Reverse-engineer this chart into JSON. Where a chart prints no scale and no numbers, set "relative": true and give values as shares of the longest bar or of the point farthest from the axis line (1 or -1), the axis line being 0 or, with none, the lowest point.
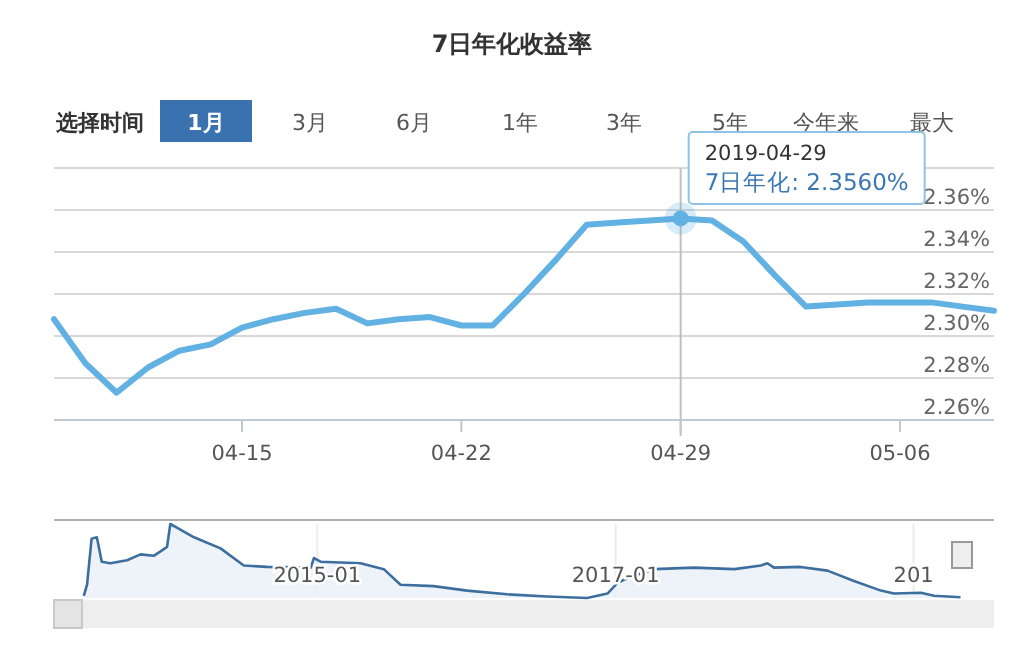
{
  "chart_data": [
    {
      "type": "line",
      "title": "7日年化收益率",
      "annotations": [
        "选择时间",
        "1月",
        "3月",
        "6月",
        "1年",
        "3年",
        "5年",
        "今年来",
        "最大",
        {
          "text": "2019-04-29\n7日年化: 2.3560%",
          "x": "2019-04-29",
          "y": 2.356
        }
      ],
      "x": [
        "2019-04-09",
        "2019-04-10",
        "2019-04-11",
        "2019-04-12",
        "2019-04-13",
        "2019-04-14",
        "2019-04-15",
        "2019-04-16",
        "2019-04-17",
        "2019-04-18",
        "2019-04-19",
        "2019-04-20",
        "2019-04-21",
        "2019-04-22",
        "2019-04-23",
        "2019-04-24",
        "2019-04-25",
        "2019-04-26",
        "2019-04-27",
        "2019-04-28",
        "2019-04-29",
        "2019-04-30",
        "2019-05-01",
        "2019-05-02",
        "2019-05-03",
        "2019-05-04",
        "2019-05-05",
        "2019-05-06",
        "2019-05-07",
        "2019-05-08",
        "2019-05-09"
      ],
      "series": [
        {
          "color": "#62b1e3",
          "values": [
            2.308,
            2.287,
            2.273,
            2.285,
            2.293,
            2.296,
            2.304,
            2.308,
            2.311,
            2.313,
            2.306,
            2.308,
            2.309,
            2.305,
            2.305,
            2.32,
            2.336,
            2.353,
            2.354,
            2.355,
            2.356,
            2.355,
            2.345,
            2.329,
            2.314,
            2.315,
            2.316,
            2.316,
            2.316,
            2.314,
            2.312
          ]
        }
      ],
      "xlim": [
        "2019-04-09",
        "2019-05-09"
      ],
      "xticks": [
        {
          "value": "2019-04-15",
          "label": "04-15"
        },
        {
          "value": "2019-04-22",
          "label": "04-22"
        },
        {
          "value": "2019-04-29",
          "label": "04-29"
        },
        {
          "value": "2019-05-06",
          "label": "05-06"
        }
      ],
      "ylim": [
        2.26,
        2.38
      ],
      "yticks": [
        {
          "value": 2.26,
          "label": "2.26%"
        },
        {
          "value": 2.28,
          "label": "2.28%"
        },
        {
          "value": 2.3,
          "label": "2.30%"
        },
        {
          "value": 2.32,
          "label": "2.32%"
        },
        {
          "value": 2.34,
          "label": "2.34%"
        },
        {
          "value": 2.36,
          "label": "2.36%"
        },
        {
          "value": 2.38,
          "label": null
        }
      ],
      "grid": "y",
      "ref_lines": [
        {
          "axis": "x",
          "value": "2019-04-29",
          "color": "#c0c0c0"
        }
      ]
    },
    {
      "type": "area",
      "relative": true,
      "x": [
        "2013-06-08",
        "2013-06-16",
        "2013-06-27",
        "2013-07-10",
        "2013-07-22",
        "2013-08-12",
        "2013-09-22",
        "2013-10-25",
        "2013-11-26",
        "2013-12-13",
        "2013-12-29",
        "2014-01-06",
        "2014-01-22",
        "2014-03-05",
        "2014-05-09",
        "2014-07-05",
        "2014-08-31",
        "2014-12-16",
        "2014-12-24",
        "2015-01-09",
        "2015-04-17",
        "2015-06-13",
        "2015-07-24",
        "2015-10-13",
        "2016-01-03",
        "2016-04-10",
        "2016-07-17",
        "2016-10-23",
        "2016-12-12",
        "2017-01-05",
        "2017-01-30",
        "2017-04-06",
        "2017-07-12",
        "2017-10-19",
        "2017-12-23",
        "2018-01-08",
        "2018-01-24",
        "2018-03-30",
        "2018-06-04",
        "2018-08-08",
        "2018-10-13",
        "2018-11-14",
        "2019-01-19",
        "2019-02-20",
        "2019-04-26"
      ],
      "series": [
        {
          "color": "#3d6f9e",
          "values": [
            0.03,
            0.18,
            0.8,
            0.82,
            0.49,
            0.47,
            0.51,
            0.59,
            0.57,
            0.63,
            0.69,
            1,
            0.95,
            0.82,
            0.67,
            0.44,
            0.42,
            0.41,
            0.54,
            0.49,
            0.47,
            0.39,
            0.18,
            0.16,
            0.1,
            0.05,
            0.02,
            0,
            0.06,
            0.2,
            0.27,
            0.39,
            0.41,
            0.39,
            0.44,
            0.47,
            0.41,
            0.42,
            0.37,
            0.23,
            0.1,
            0.06,
            0.07,
            0.03,
            0.01
          ]
        }
      ],
      "xlim": [
        "2013-03-27",
        "2019-07-17"
      ],
      "xticks": [
        {
          "value": "2015-01",
          "label": "2015-01"
        },
        {
          "value": "2017-01",
          "label": "2017-01"
        },
        {
          "value": "2019-01",
          "label": "201"
        }
      ],
      "grid": "x"
    }
  ]
}
